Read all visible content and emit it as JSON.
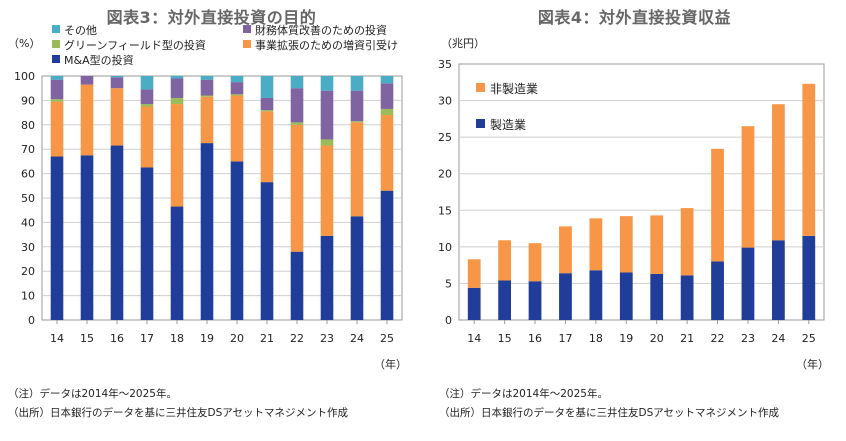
{
  "chart_data": [
    {
      "type": "bar",
      "stacked": true,
      "title": "図表3：対外直接投資の目的",
      "ylabel": "（%）",
      "xlabel": "（年）",
      "ylim": [
        0,
        100
      ],
      "yticks": [
        0,
        10,
        20,
        30,
        40,
        50,
        60,
        70,
        80,
        90,
        100
      ],
      "categories": [
        "14",
        "15",
        "16",
        "17",
        "18",
        "19",
        "20",
        "21",
        "22",
        "23",
        "24",
        "25"
      ],
      "grid": true,
      "legend": "top",
      "series": [
        {
          "name": "M&A型の投資",
          "color": "#1f3d99",
          "values": [
            67,
            67.5,
            71.5,
            62.5,
            46.5,
            72.5,
            65,
            56.5,
            28,
            34.5,
            42.5,
            53
          ]
        },
        {
          "name": "事業拡張のための増資引受け",
          "color": "#f79646",
          "values": [
            22.5,
            29,
            23.5,
            25,
            42,
            19,
            27,
            29,
            52,
            37,
            38.5,
            31
          ]
        },
        {
          "name": "グリーンフィールド型の投資",
          "color": "#9bbb59",
          "values": [
            1,
            0,
            0,
            1,
            2.5,
            0.5,
            0.5,
            0.5,
            1,
            2.5,
            0.5,
            2.5
          ]
        },
        {
          "name": "財務体質改善のための投資",
          "color": "#8064a2",
          "values": [
            8,
            3.5,
            4.5,
            6,
            8,
            6.5,
            5,
            5,
            14,
            20,
            12.5,
            10.5
          ]
        },
        {
          "name": "その他",
          "color": "#4bacc6",
          "values": [
            1.5,
            0,
            0.5,
            5.5,
            1,
            1.5,
            2.5,
            9,
            5,
            6,
            6,
            3
          ]
        }
      ]
    },
    {
      "type": "bar",
      "stacked": true,
      "title": "図表4：対外直接投資収益",
      "ylabel": "（兆円）",
      "xlabel": "（年）",
      "ylim": [
        0,
        35
      ],
      "yticks": [
        0,
        5,
        10,
        15,
        20,
        25,
        30,
        35
      ],
      "categories": [
        "14",
        "15",
        "16",
        "17",
        "18",
        "19",
        "20",
        "21",
        "22",
        "23",
        "24",
        "25"
      ],
      "grid": true,
      "legend": "top-left",
      "series": [
        {
          "name": "製造業",
          "color": "#1f3d99",
          "values": [
            4.4,
            5.4,
            5.3,
            6.4,
            6.8,
            6.5,
            6.3,
            6.1,
            8.0,
            9.9,
            10.9,
            11.5
          ]
        },
        {
          "name": "非製造業",
          "color": "#f79646",
          "values": [
            3.9,
            5.5,
            5.2,
            6.4,
            7.1,
            7.7,
            8.0,
            9.2,
            15.4,
            16.6,
            18.6,
            20.8
          ]
        }
      ]
    }
  ],
  "notes_left": [
    "（注）データは2014年～2025年。",
    "（出所）日本銀行のデータを基に三井住友DSアセットマネジメント作成"
  ],
  "notes_right": [
    "（注）データは2014年～2025年。",
    "（出所）日本銀行のデータを基に三井住友DSアセットマネジメント作成"
  ]
}
